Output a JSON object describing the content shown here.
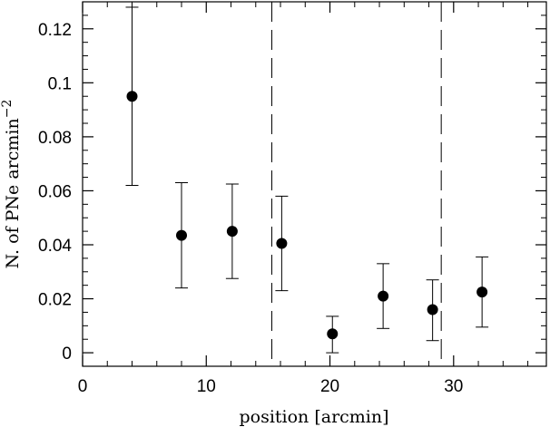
{
  "chart_data": {
    "type": "scatter",
    "title": "",
    "xlabel": "position [arcmin]",
    "ylabel": "N. of PNe arcmin",
    "ylabel_superscript": "−2",
    "xlim": [
      0,
      37.5
    ],
    "ylim": [
      -0.005,
      0.13
    ],
    "x_major_ticks": [
      0,
      10,
      20,
      30
    ],
    "x_tick_labels": [
      "0",
      "10",
      "20",
      "30"
    ],
    "x_minor_step": 2,
    "y_major_ticks": [
      0,
      0.02,
      0.04,
      0.06,
      0.08,
      0.1,
      0.12
    ],
    "y_tick_labels": [
      "0",
      "0.02",
      "0.04",
      "0.06",
      "0.08",
      "0.1",
      "0.12"
    ],
    "y_minor_step": 0.005,
    "grid": false,
    "vertical_lines": [
      15.3,
      29.0
    ],
    "series": [
      {
        "points": [
          {
            "x": 4.0,
            "y": 0.095,
            "err_low": 0.062,
            "err_high": 0.128
          },
          {
            "x": 8.0,
            "y": 0.0435,
            "err_low": 0.024,
            "err_high": 0.063
          },
          {
            "x": 12.1,
            "y": 0.045,
            "err_low": 0.0275,
            "err_high": 0.0625
          },
          {
            "x": 16.1,
            "y": 0.0405,
            "err_low": 0.023,
            "err_high": 0.058
          },
          {
            "x": 20.2,
            "y": 0.007,
            "err_low": 0.0,
            "err_high": 0.0135
          },
          {
            "x": 24.3,
            "y": 0.021,
            "err_low": 0.009,
            "err_high": 0.033
          },
          {
            "x": 28.3,
            "y": 0.016,
            "err_low": 0.0045,
            "err_high": 0.027
          },
          {
            "x": 32.3,
            "y": 0.0225,
            "err_low": 0.0095,
            "err_high": 0.0355
          }
        ]
      }
    ]
  }
}
